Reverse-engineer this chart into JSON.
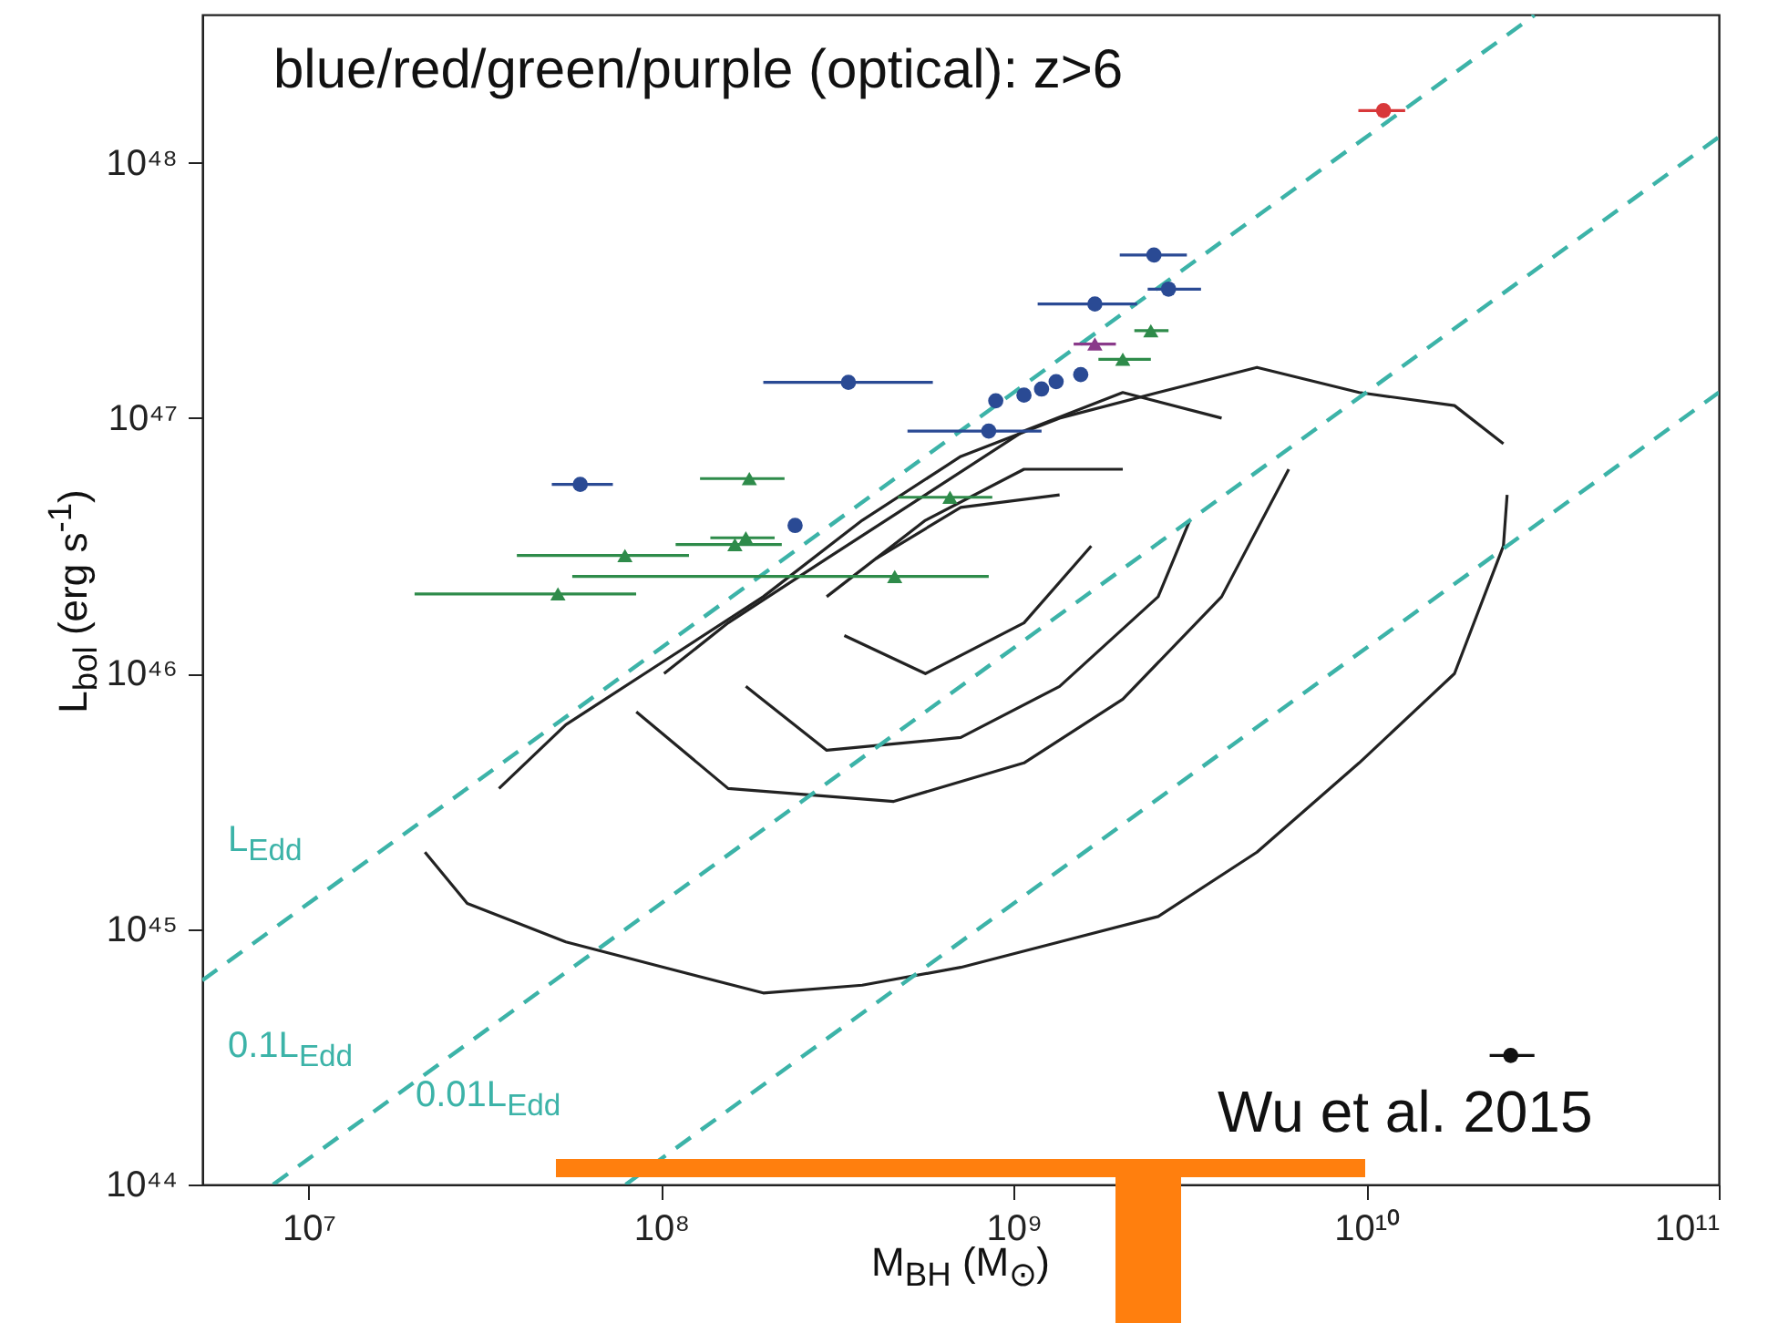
{
  "chart_data": {
    "type": "scatter",
    "xlabel": "M$_{BH}$ (M$_{⊙}$)",
    "ylabel": "L$_{bol}$ (erg s$^{-1}$)",
    "log": "xy",
    "grid": false,
    "xlim": [
      5000000.0,
      100000000000.0
    ],
    "ylim": [
      1e+44,
      3.8e+48
    ],
    "xticks": [
      {
        "value": 10000000.0,
        "label": "10⁷"
      },
      {
        "value": 100000000.0,
        "label": "10⁸"
      },
      {
        "value": 1000000000.0,
        "label": "10⁹"
      },
      {
        "value": 10000000000.0,
        "label": "10¹⁰"
      },
      {
        "value": 100000000000.0,
        "label": "10¹¹"
      }
    ],
    "yticks": [
      {
        "value": 1e+44,
        "label": "10⁴⁴"
      },
      {
        "value": 1e+45,
        "label": "10⁴⁵"
      },
      {
        "value": 1e+46,
        "label": "10⁴⁶"
      },
      {
        "value": 1e+47,
        "label": "10⁴⁷"
      },
      {
        "value": 1e+48,
        "label": "10⁴⁸"
      }
    ],
    "annotations": [
      "blue/red/green/purple (optical): z>6",
      "Wu et al. 2015",
      "L$_{Edd}$",
      "0.1L$_{Edd}$",
      "0.01L$_{Edd}$"
    ],
    "series": [
      {
        "type": "line",
        "color": "#222222",
        "line_style": "solid",
        "x": [
          21400000.0,
          28200000.0,
          53700000.0,
          102000000.0,
          195000000.0,
          372000000.0,
          708000000.0,
          1350000000.0,
          2570000000.0,
          4900000000.0,
          9550000000.0,
          17800000000.0,
          24500000000.0,
          25100000000.0
        ],
        "values": [
          2e+45,
          1.26e+45,
          8.91e+44,
          7.08e+44,
          5.62e+44,
          6.03e+44,
          7.08e+44,
          8.91e+44,
          1.12e+45,
          2e+45,
          4.47e+45,
          1e+46,
          3.16e+46,
          5.01e+46
        ]
      },
      {
        "type": "line",
        "color": "#222222",
        "line_style": "solid",
        "x": [
          34700000.0,
          53700000.0,
          102000000.0,
          195000000.0,
          372000000.0,
          708000000.0,
          1350000000.0,
          2570000000.0,
          4900000000.0,
          9550000000.0,
          17800000000.0,
          24500000000.0
        ],
        "values": [
          3.55e+45,
          6.31e+45,
          1.12e+46,
          2e+46,
          3.98e+46,
          7.08e+46,
          1e+47,
          1.26e+47,
          1.58e+47,
          1.26e+47,
          1.12e+47,
          7.94e+46
        ]
      },
      {
        "type": "line",
        "color": "#222222",
        "line_style": "solid",
        "x": [
          85100000.0,
          155000000.0,
          457000000.0,
          1070000000.0,
          2040000000.0,
          3890000000.0,
          6030000000.0
        ],
        "values": [
          7.08e+45,
          3.55e+45,
          3.16e+45,
          4.47e+45,
          7.94e+45,
          2e+46,
          6.31e+46
        ]
      },
      {
        "type": "line",
        "color": "#222222",
        "line_style": "solid",
        "x": [
          102000000.0,
          155000000.0,
          295000000.0,
          562000000.0,
          1070000000.0,
          2040000000.0,
          3890000000.0
        ],
        "values": [
          1e+46,
          1.58e+46,
          2.82e+46,
          5.01e+46,
          8.91e+46,
          1.26e+47,
          1e+47
        ]
      },
      {
        "type": "line",
        "color": "#222222",
        "line_style": "solid",
        "x": [
          174000000.0,
          295000000.0,
          708000000.0,
          1350000000.0,
          2570000000.0,
          3160000000.0
        ],
        "values": [
          8.91e+45,
          5.01e+45,
          5.62e+45,
          8.91e+45,
          2e+46,
          3.98e+46
        ]
      },
      {
        "type": "line",
        "color": "#222222",
        "line_style": "solid",
        "x": [
          295000000.0,
          562000000.0,
          1070000000.0,
          2040000000.0
        ],
        "values": [
          2e+46,
          3.98e+46,
          6.31e+46,
          6.31e+46
        ]
      },
      {
        "type": "line",
        "color": "#222222",
        "line_style": "solid",
        "x": [
          331000000.0,
          562000000.0,
          1070000000.0,
          1660000000.0
        ],
        "values": [
          1.41e+46,
          1e+46,
          1.58e+46,
          3.16e+46
        ]
      },
      {
        "type": "line",
        "color": "#222222",
        "line_style": "solid",
        "x": [
          407000000.0,
          708000000.0,
          1350000000.0
        ],
        "values": [
          2.82e+46,
          4.47e+46,
          5.01e+46
        ]
      },
      {
        "type": "line",
        "color": "#3cb3a8",
        "line_style": "dashed",
        "x": [
          5000000.0,
          30000000000.0
        ],
        "values": [
          6.3e+44,
          3.78e+48
        ]
      },
      {
        "type": "line",
        "color": "#3cb3a8",
        "line_style": "dashed",
        "x": [
          7940000.0,
          100000000000.0
        ],
        "values": [
          1e+44,
          1.26e+48
        ]
      },
      {
        "type": "line",
        "color": "#3cb3a8",
        "line_style": "dashed",
        "x": [
          79400000.0,
          100000000000.0
        ],
        "values": [
          1e+44,
          1.26e+47
        ]
      },
      {
        "color": "#2a4a94",
        "marker": "circle",
        "x": [
          59000000.0,
          340000000.0,
          240000000.0,
          850000000.0,
          890000000.0,
          1070000000.0,
          1200000000.0,
          1320000000.0,
          1550000000.0,
          1700000000.0,
          2500000000.0,
          2750000000.0
        ],
        "values": [
          5.5e+46,
          1.38e+47,
          3.8e+46,
          8.9e+46,
          1.17e+47,
          1.23e+47,
          1.3e+47,
          1.39e+47,
          1.48e+47,
          2.8e+47,
          4.35e+47,
          3.2e+47
        ],
        "xerrors": [
          [
            49000000.0,
            73000000.0
          ],
          [
            195000000.0,
            590000000.0
          ],
          null,
          [
            500000000.0,
            1200000000.0
          ],
          null,
          null,
          null,
          null,
          null,
          [
            1170000000.0,
            2240000000.0
          ],
          [
            2000000000.0,
            3100000000.0
          ],
          [
            2400000000.0,
            3400000000.0
          ]
        ]
      },
      {
        "color": "#2e8b4a",
        "marker": "triangle",
        "x": [
          51000000.0,
          79000000.0,
          178000000.0,
          174000000.0,
          162000000.0,
          460000000.0,
          660000000.0,
          2040000000.0,
          2450000000.0
        ],
        "values": [
          2.05e+46,
          2.9e+46,
          5.8e+46,
          3.4e+46,
          3.2e+46,
          2.4e+46,
          4.9e+46,
          1.7e+47,
          2.2e+47
        ],
        "xerrors": [
          [
            20000000.0,
            85000000.0
          ],
          [
            39000000.0,
            120000000.0
          ],
          [
            129000000.0,
            224000000.0
          ],
          [
            138000000.0,
            210000000.0
          ],
          [
            110000000.0,
            220000000.0
          ],
          [
            56000000.0,
            850000000.0
          ],
          [
            470000000.0,
            870000000.0
          ],
          [
            1740000000.0,
            2450000000.0
          ],
          [
            2200000000.0,
            2750000000.0
          ]
        ]
      },
      {
        "color": "#8a3a8a",
        "marker": "triangle",
        "x": [
          1700000000.0
        ],
        "values": [
          1.95e+47
        ],
        "xerrors": [
          [
            1480000000.0,
            1950000000.0
          ]
        ]
      },
      {
        "color": "#d8383a",
        "marker": "circle",
        "x": [
          11200000000.0
        ],
        "values": [
          1.6e+48
        ],
        "xerrors": [
          [
            9500000000.0,
            12900000000.0
          ]
        ]
      },
      {
        "color": "#111111",
        "marker": "circle",
        "x": [
          25700000000.0
        ],
        "values": [
          3.2e+44
        ],
        "xerrors": [
          [
            22400000000.0,
            30000000000.0
          ]
        ]
      }
    ]
  }
}
